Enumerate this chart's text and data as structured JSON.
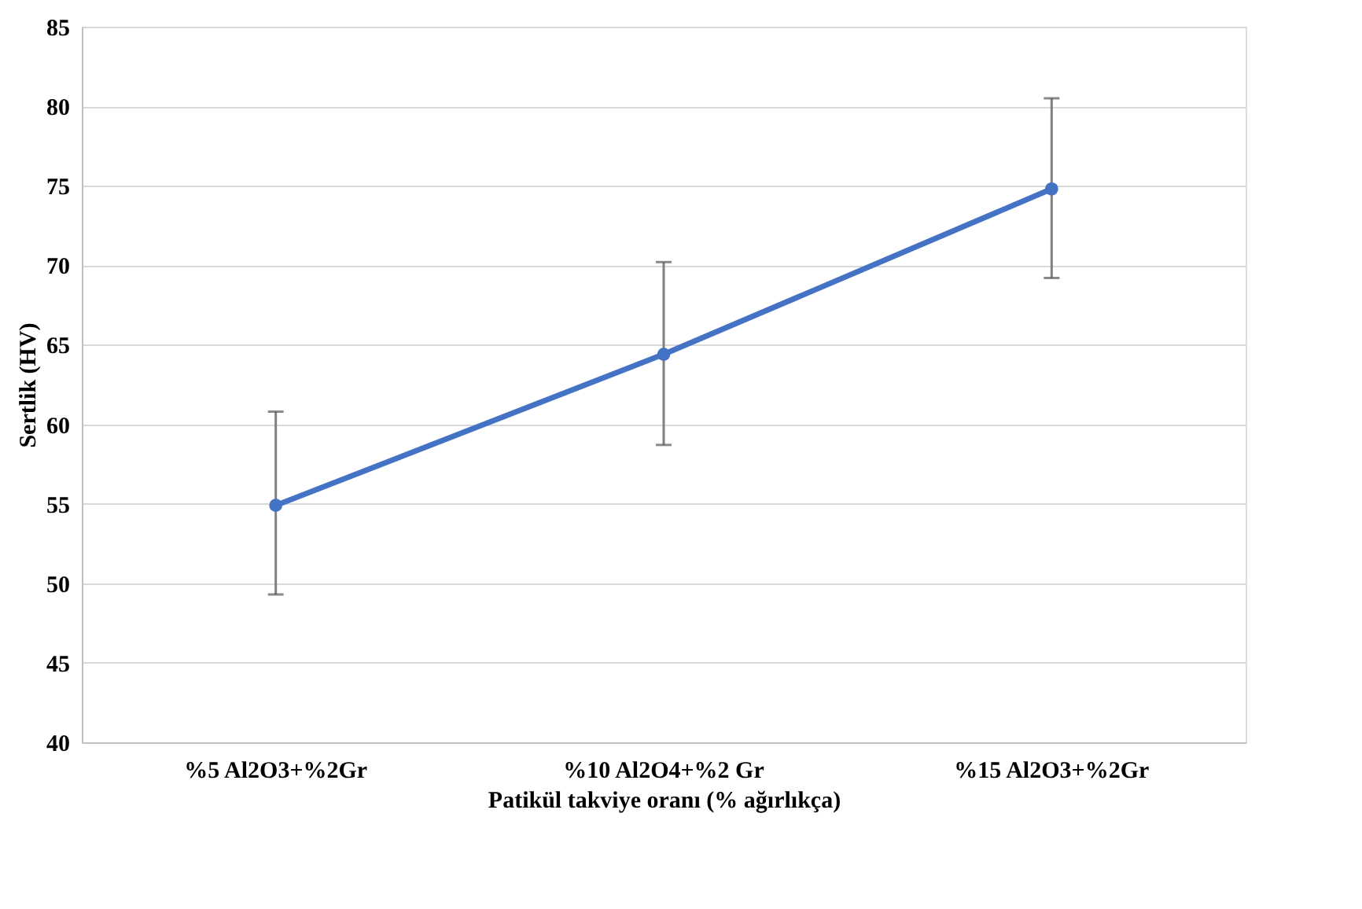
{
  "chart_data": {
    "type": "line",
    "xlabel": "Patikül takviye oranı (% ağırlıkça)",
    "ylabel": "Sertlik (HV)",
    "categories": [
      "%5 Al2O3+%2Gr",
      "%10 Al2O4+%2 Gr",
      "%15 Al2O3+%2Gr"
    ],
    "series": [
      {
        "color": "#4472c4",
        "values": [
          54.9,
          64.4,
          74.8
        ],
        "errors": [
          [
            49.3,
            60.8
          ],
          [
            58.7,
            70.2
          ],
          [
            69.2,
            80.5
          ]
        ]
      }
    ],
    "ylim": [
      40,
      85
    ],
    "yticks": [
      40,
      45,
      50,
      55,
      60,
      65,
      70,
      75,
      80,
      85
    ],
    "grid": "y",
    "marker": "circle",
    "line_style": "solid"
  }
}
